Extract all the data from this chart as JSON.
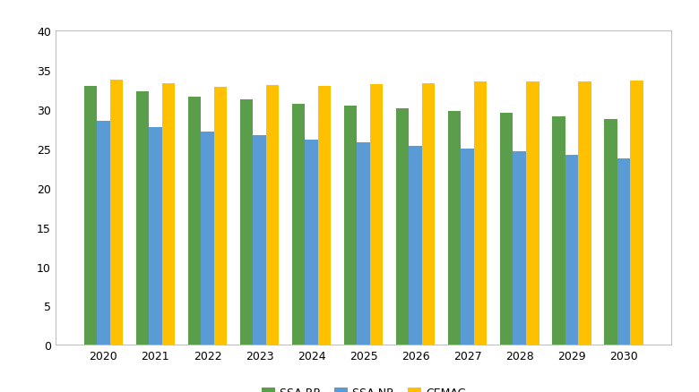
{
  "years": [
    2020,
    2021,
    2022,
    2023,
    2024,
    2025,
    2026,
    2027,
    2028,
    2029,
    2030
  ],
  "ssa_rr": [
    33.0,
    32.3,
    31.6,
    31.2,
    30.7,
    30.5,
    30.1,
    29.8,
    29.5,
    29.1,
    28.7
  ],
  "ssa_nr": [
    28.5,
    27.7,
    27.2,
    26.7,
    26.1,
    25.8,
    25.3,
    25.0,
    24.6,
    24.2,
    23.7
  ],
  "cemac": [
    33.7,
    33.3,
    32.8,
    33.1,
    33.0,
    33.2,
    33.3,
    33.5,
    33.5,
    33.5,
    33.6
  ],
  "ssa_rr_color": "#5a9e4b",
  "ssa_nr_color": "#5b9bd5",
  "cemac_color": "#ffc000",
  "legend_labels": [
    "SSA RR",
    "SSA NR",
    "CEMAC"
  ],
  "ylim": [
    0,
    40
  ],
  "yticks": [
    0,
    5,
    10,
    15,
    20,
    25,
    30,
    35,
    40
  ],
  "bar_width": 0.25,
  "background_color": "#ffffff",
  "plot_bg_color": "#ffffff",
  "border_color": "#c0c0c0",
  "tick_label_fontsize": 9
}
